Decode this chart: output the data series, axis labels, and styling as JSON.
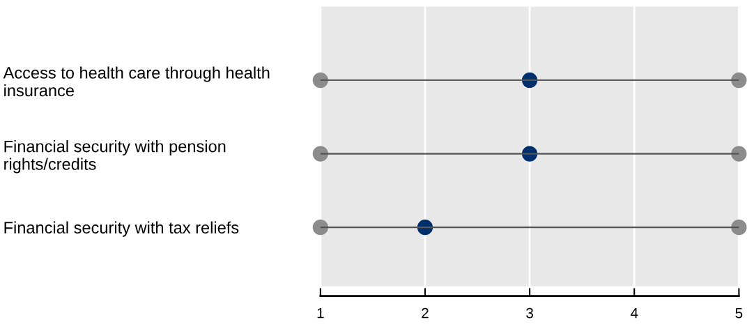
{
  "chart_data": {
    "type": "scatter",
    "orientation": "horizontal",
    "categories": [
      "Access to health care through health\ninsurance",
      "Financial security with pension\nrights/credits",
      "Financial security with tax reliefs"
    ],
    "series": [
      {
        "type": "bar",
        "color": "#555555",
        "base": [
          1,
          1,
          1
        ],
        "values": [
          4,
          4,
          4
        ]
      },
      {
        "color": "#8c8c8c",
        "values": [
          1,
          1,
          1
        ]
      },
      {
        "color": "#8c8c8c",
        "values": [
          5,
          5,
          5
        ]
      },
      {
        "color": "#002f6c",
        "values": [
          3,
          3,
          2
        ]
      }
    ],
    "xlim": [
      1,
      5
    ],
    "xticks": [
      1,
      2,
      3,
      4,
      5
    ],
    "grid": "x",
    "marker": "circle"
  }
}
